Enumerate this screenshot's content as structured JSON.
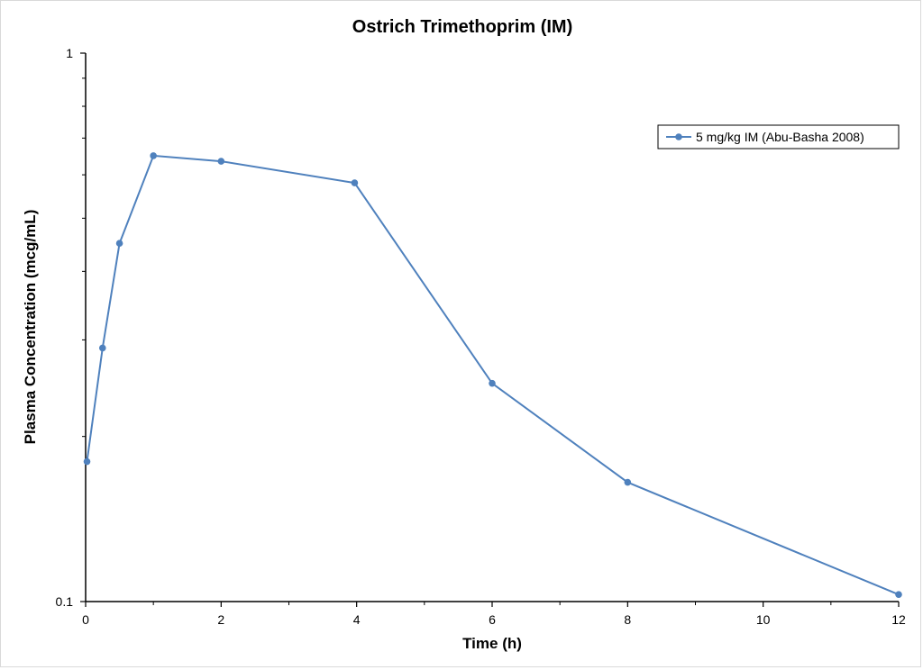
{
  "chart_data": {
    "type": "line",
    "title": "Ostrich Trimethoprim (IM)",
    "xlabel": "Time (h)",
    "ylabel": "Plasma Concentration (mcg/mL)",
    "xlim": [
      0,
      12
    ],
    "ylim": [
      0.1,
      1
    ],
    "y_scale": "log",
    "x_ticks": [
      0,
      2,
      4,
      6,
      8,
      10,
      12
    ],
    "y_ticks": [
      0.1,
      1
    ],
    "x_tick_labels": [
      "0",
      "2",
      "4",
      "6",
      "8",
      "10",
      "12"
    ],
    "y_tick_labels": [
      "0.1",
      "1"
    ],
    "grid": false,
    "legend_position": "top-right",
    "series": [
      {
        "name": "5 mg/kg IM (Abu-Basha 2008)",
        "color": "#4f81bd",
        "marker": "circle",
        "x": [
          0.02,
          0.25,
          0.5,
          1,
          2,
          3.97,
          6,
          8,
          12
        ],
        "y": [
          0.18,
          0.29,
          0.45,
          0.65,
          0.635,
          0.58,
          0.25,
          0.165,
          0.103
        ]
      }
    ]
  }
}
